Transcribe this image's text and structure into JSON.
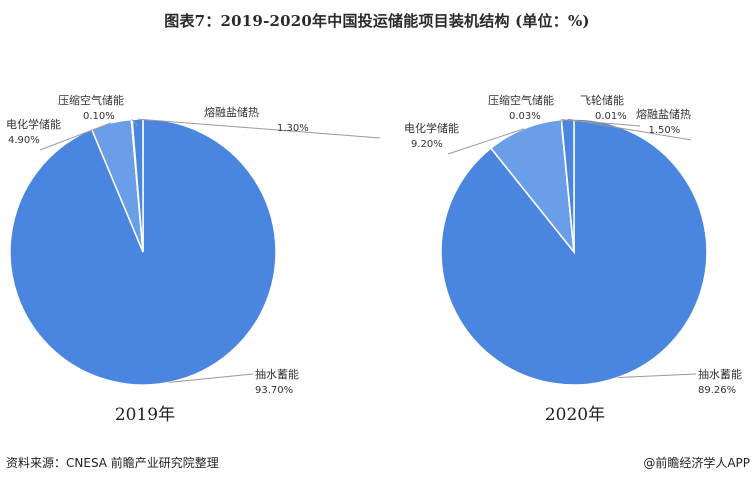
{
  "chart_data": [
    {
      "type": "pie",
      "title": "图表7：2019-2020年中国投运储能项目装机结构 (单位：%)",
      "year_label": "2019年",
      "slices": [
        {
          "label": "抽水蓄能",
          "value": 93.7,
          "value_text": "93.70%"
        },
        {
          "label": "电化学储能",
          "value": 4.9,
          "value_text": "4.90%"
        },
        {
          "label": "压缩空气储能",
          "value": 0.1,
          "value_text": "0.10%"
        },
        {
          "label": "熔融盐储热",
          "value": 1.3,
          "value_text": "1.30%"
        }
      ]
    },
    {
      "type": "pie",
      "year_label": "2020年",
      "slices": [
        {
          "label": "抽水蓄能",
          "value": 89.26,
          "value_text": "89.26%"
        },
        {
          "label": "电化学储能",
          "value": 9.2,
          "value_text": "9.20%"
        },
        {
          "label": "压缩空气储能",
          "value": 0.03,
          "value_text": "0.03%"
        },
        {
          "label": "飞轮储能",
          "value": 0.01,
          "value_text": "0.01%"
        },
        {
          "label": "熔融盐储热",
          "value": 1.5,
          "value_text": "1.50%"
        }
      ]
    }
  ],
  "colors": {
    "slice_fill": "#4a86e0",
    "slice_fill_light": "#6a9ee8",
    "slice_stroke": "#ffffff",
    "leader_line": "#9a9a9a",
    "label_text": "#333333"
  },
  "footer": {
    "source": "资料来源：CNESA 前瞻产业研究院整理",
    "brand": "@前瞻经济学人APP"
  }
}
